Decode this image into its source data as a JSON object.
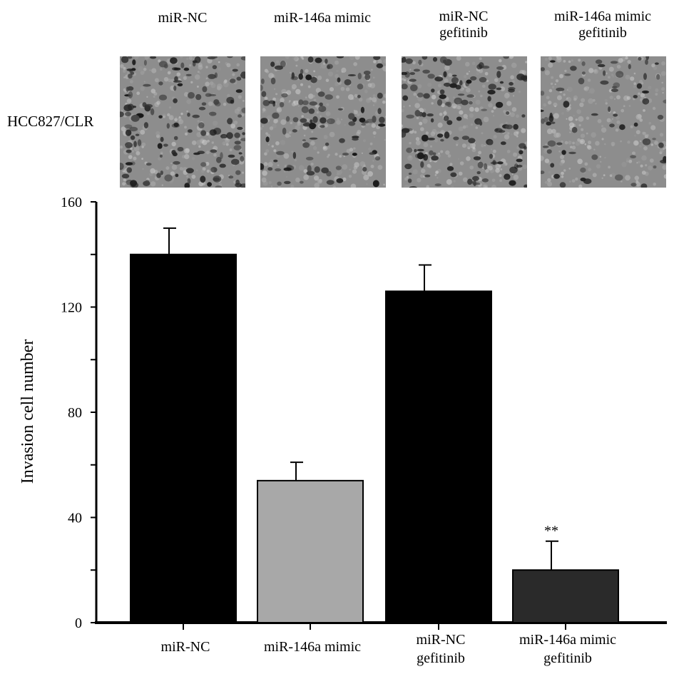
{
  "image_panels": {
    "row_label": "HCC827/CLR",
    "columns": [
      {
        "line1": "miR-NC",
        "line2": ""
      },
      {
        "line1": "miR-146a mimic",
        "line2": ""
      },
      {
        "line1": "miR-NC",
        "line2": "gefitinib"
      },
      {
        "line1": "miR-146a mimic",
        "line2": "gefitinib"
      }
    ]
  },
  "chart_data": {
    "type": "bar",
    "title": "",
    "xlabel": "",
    "ylabel": "Invasion cell number",
    "ylim": [
      0,
      160
    ],
    "yticks": [
      0,
      40,
      80,
      120,
      160
    ],
    "categories": [
      [
        "miR-NC"
      ],
      [
        "miR-146a mimic"
      ],
      [
        "miR-NC",
        "gefitinib"
      ],
      [
        "miR-146a mimic",
        "gefitinib"
      ]
    ],
    "values": [
      140,
      54,
      126,
      20
    ],
    "errors": [
      10,
      7,
      10,
      11
    ],
    "annotations": [
      "",
      "",
      "",
      "**"
    ],
    "colors": [
      "#000000",
      "#a8a8a8",
      "#000000",
      "#2a2a2a"
    ]
  }
}
